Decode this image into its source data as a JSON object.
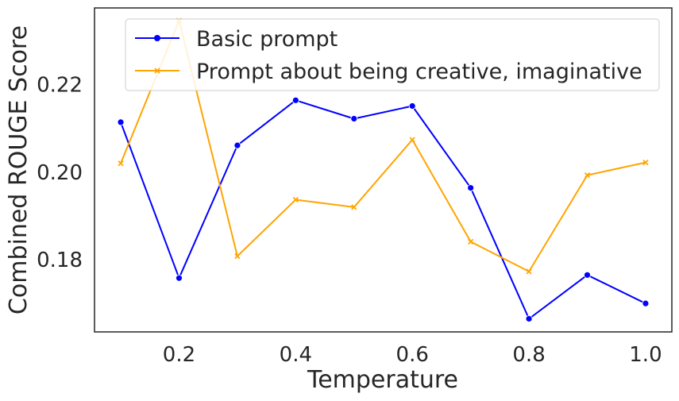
{
  "chart_data": {
    "type": "line",
    "title": "",
    "xlabel": "Temperature",
    "ylabel": "Combined ROUGE Score",
    "x": [
      0.1,
      0.2,
      0.3,
      0.4,
      0.5,
      0.6,
      0.7,
      0.8,
      0.9,
      1.0
    ],
    "xticks": [
      "0.2",
      "0.4",
      "0.6",
      "0.8",
      "1.0"
    ],
    "xtick_values": [
      0.2,
      0.4,
      0.6,
      0.8,
      1.0
    ],
    "yticks": [
      "0.18",
      "0.20",
      "0.22"
    ],
    "ytick_values": [
      0.18,
      0.2,
      0.22
    ],
    "xlim": [
      0.055,
      1.045
    ],
    "ylim": [
      0.1635,
      0.2375
    ],
    "grid": false,
    "legend_position": "top-right",
    "series": [
      {
        "name": "Basic prompt",
        "color": "#0000ff",
        "marker": "circle",
        "values": [
          0.2114,
          0.1758,
          0.2061,
          0.2164,
          0.2122,
          0.2151,
          0.1964,
          0.1665,
          0.1765,
          0.17
        ]
      },
      {
        "name": "Prompt about being creative, imaginative",
        "color": "#ffa500",
        "marker": "x",
        "values": [
          0.202,
          0.2346,
          0.1808,
          0.1937,
          0.192,
          0.2074,
          0.1841,
          0.1773,
          0.1993,
          0.2022
        ]
      }
    ]
  }
}
